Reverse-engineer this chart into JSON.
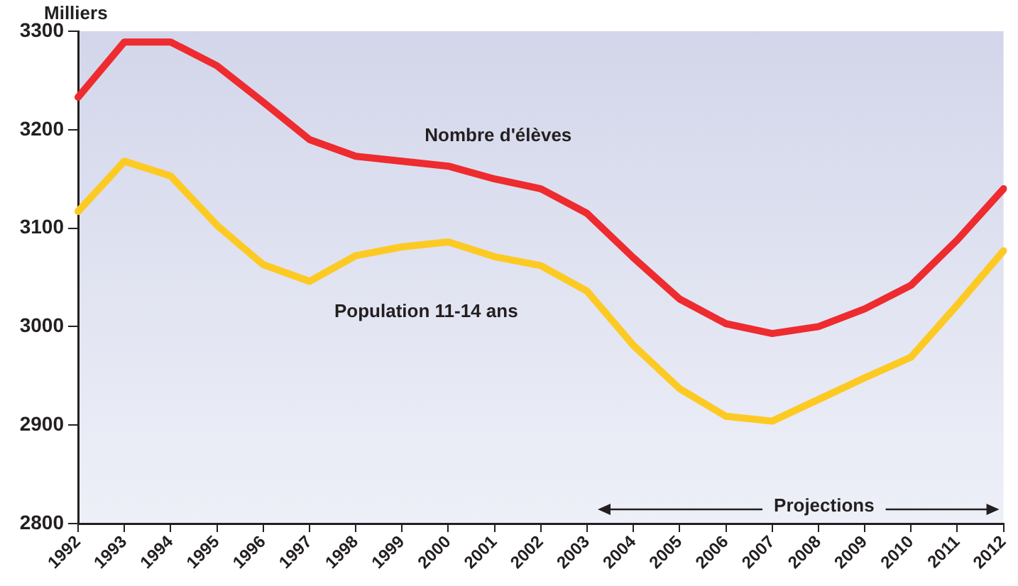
{
  "chart_data": {
    "type": "line",
    "ylabel": "Milliers",
    "categories": [
      "1992",
      "1993",
      "1994",
      "1995",
      "1996",
      "1997",
      "1998",
      "1999",
      "2000",
      "2001",
      "2002",
      "2003",
      "2004",
      "2005",
      "2006",
      "2007",
      "2008",
      "2009",
      "2010",
      "2011",
      "2012"
    ],
    "series": [
      {
        "name": "Nombre d'élèves",
        "color": "#ee2b2f",
        "values": [
          3233,
          3289,
          3289,
          3265,
          3228,
          3190,
          3173,
          3168,
          3163,
          3150,
          3140,
          3115,
          3070,
          3028,
          3003,
          2993,
          3000,
          3018,
          3042,
          3088,
          3140
        ]
      },
      {
        "name": "Population 11-14 ans",
        "color": "#fdca24",
        "values": [
          3117,
          3168,
          3153,
          3103,
          3063,
          3046,
          3072,
          3081,
          3086,
          3071,
          3062,
          3036,
          2981,
          2937,
          2909,
          2904,
          2926,
          2948,
          2969,
          3022,
          3077
        ]
      }
    ],
    "ylim": [
      2800,
      3300
    ],
    "yticks": [
      2800,
      2900,
      3000,
      3100,
      3200,
      3300
    ],
    "annotations": [
      "Projections"
    ],
    "grid": false,
    "legend": false,
    "marker": "none",
    "line_style": "solid"
  }
}
